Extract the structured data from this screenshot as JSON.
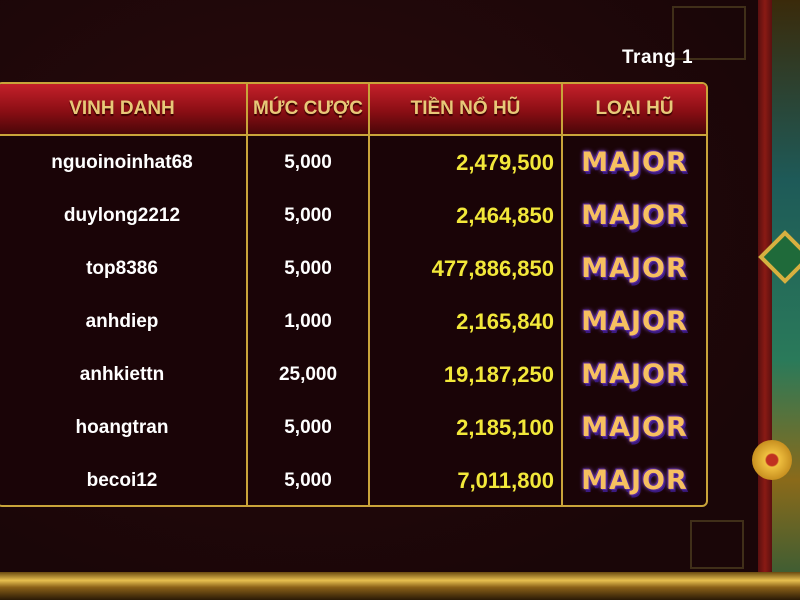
{
  "page_label": "Trang 1",
  "headers": [
    "VINH DANH",
    "MỨC CƯỢC",
    "TIỀN NỔ HŨ",
    "LOẠI HŨ"
  ],
  "rows": [
    {
      "name": "nguoinoinhat68",
      "bet": "5,000",
      "amount": "2,479,500",
      "type": "MAJOR"
    },
    {
      "name": "duylong2212",
      "bet": "5,000",
      "amount": "2,464,850",
      "type": "MAJOR"
    },
    {
      "name": "top8386",
      "bet": "5,000",
      "amount": "477,886,850",
      "type": "MAJOR"
    },
    {
      "name": "anhdiep",
      "bet": "1,000",
      "amount": "2,165,840",
      "type": "MAJOR"
    },
    {
      "name": "anhkiettn",
      "bet": "25,000",
      "amount": "19,187,250",
      "type": "MAJOR"
    },
    {
      "name": "hoangtran",
      "bet": "5,000",
      "amount": "2,185,100",
      "type": "MAJOR"
    },
    {
      "name": "becoi12",
      "bet": "5,000",
      "amount": "7,011,800",
      "type": "MAJOR"
    }
  ],
  "colors": {
    "gold": "#c9a43a",
    "amount": "#f2e83a",
    "header_red": "#c4202a"
  }
}
